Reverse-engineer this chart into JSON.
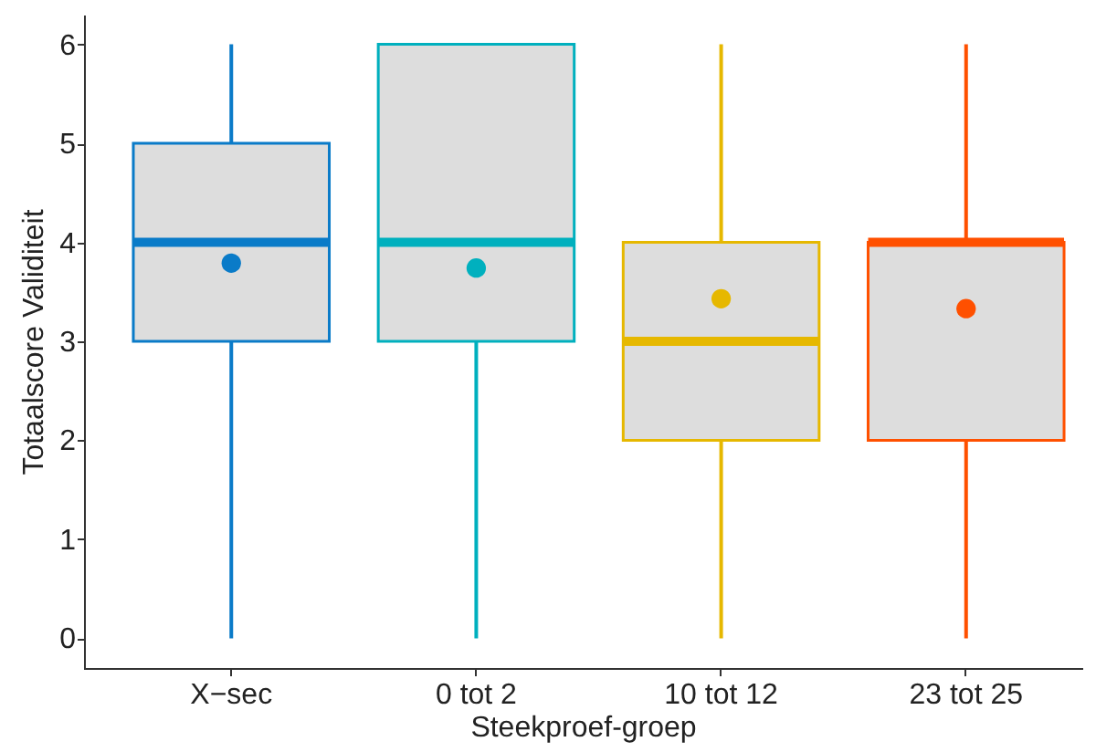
{
  "chart_data": {
    "type": "box",
    "xlabel": "Steekproef-groep",
    "ylabel": "Totaalscore Validiteit",
    "categories": [
      "X−sec",
      "0 tot 2",
      "10 tot 12",
      "23 tot 25"
    ],
    "boxes": [
      {
        "low": 0,
        "q1": 3,
        "median": 4,
        "q3": 5,
        "high": 6,
        "mean": 3.79
      },
      {
        "low": 0,
        "q1": 3,
        "median": 4,
        "q3": 6,
        "high": 6,
        "mean": 3.74
      },
      {
        "low": 0,
        "q1": 2,
        "median": 3,
        "q3": 4,
        "high": 6,
        "mean": 3.43
      },
      {
        "low": 0,
        "q1": 2,
        "median": 4,
        "q3": 4,
        "high": 6,
        "mean": 3.33
      }
    ],
    "colors": [
      "#0a7bc8",
      "#00b0be",
      "#e6b800",
      "#ff5000"
    ],
    "ylim": [
      -0.3,
      6.3
    ],
    "yticks": [
      0,
      1,
      2,
      3,
      4,
      5,
      6
    ]
  }
}
